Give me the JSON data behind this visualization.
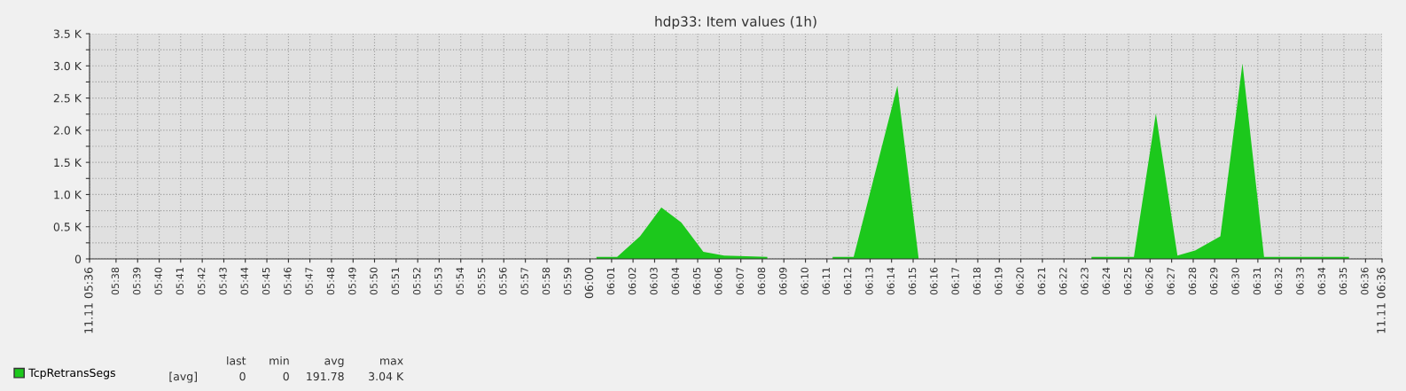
{
  "chart_data": {
    "type": "area",
    "title": "hdp33: Item values (1h)",
    "x": [
      6.005,
      6.021,
      6.0387,
      6.0552,
      6.0705,
      6.0877,
      6.1037,
      6.1372,
      6.15,
      6.1877,
      6.204,
      6.2378,
      6.2543,
      6.3,
      6.388,
      6.4208,
      6.4378,
      6.4545,
      6.4682,
      6.4877,
      6.5048,
      6.5215,
      6.5872
    ],
    "series": [
      {
        "name": "TcpRetransSegs",
        "color": "#1cc81c",
        "values": [
          30,
          30,
          350,
          800,
          570,
          110,
          50,
          30,
          null,
          30,
          30,
          2690,
          0,
          null,
          30,
          30,
          2260,
          50,
          130,
          350,
          3040,
          30,
          30
        ]
      }
    ],
    "xlim": [
      5.6128,
      6.6128
    ],
    "xticks": [
      {
        "value": 5.6128,
        "label": "11.11 05:36"
      },
      {
        "value": 5.6333,
        "label": "05:38"
      },
      {
        "value": 5.65,
        "label": "05:39"
      },
      {
        "value": 5.6667,
        "label": "05:40"
      },
      {
        "value": 5.6833,
        "label": "05:41"
      },
      {
        "value": 5.7,
        "label": "05:42"
      },
      {
        "value": 5.7167,
        "label": "05:43"
      },
      {
        "value": 5.7333,
        "label": "05:44"
      },
      {
        "value": 5.75,
        "label": "05:45"
      },
      {
        "value": 5.7667,
        "label": "05:46"
      },
      {
        "value": 5.7833,
        "label": "05:47"
      },
      {
        "value": 5.8,
        "label": "05:48"
      },
      {
        "value": 5.8167,
        "label": "05:49"
      },
      {
        "value": 5.8333,
        "label": "05:50"
      },
      {
        "value": 5.85,
        "label": "05:51"
      },
      {
        "value": 5.8667,
        "label": "05:52"
      },
      {
        "value": 5.8833,
        "label": "05:53"
      },
      {
        "value": 5.9,
        "label": "05:54"
      },
      {
        "value": 5.9167,
        "label": "05:55"
      },
      {
        "value": 5.9333,
        "label": "05:56"
      },
      {
        "value": 5.95,
        "label": "05:57"
      },
      {
        "value": 5.9667,
        "label": "05:58"
      },
      {
        "value": 5.9833,
        "label": "05:59"
      },
      {
        "value": 6,
        "label": "06:00"
      },
      {
        "value": 6.0167,
        "label": "06:01"
      },
      {
        "value": 6.0333,
        "label": "06:02"
      },
      {
        "value": 6.05,
        "label": "06:03"
      },
      {
        "value": 6.0667,
        "label": "06:04"
      },
      {
        "value": 6.0833,
        "label": "06:05"
      },
      {
        "value": 6.1,
        "label": "06:06"
      },
      {
        "value": 6.1167,
        "label": "06:07"
      },
      {
        "value": 6.1333,
        "label": "06:08"
      },
      {
        "value": 6.15,
        "label": "06:09"
      },
      {
        "value": 6.1667,
        "label": "06:10"
      },
      {
        "value": 6.1833,
        "label": "06:11"
      },
      {
        "value": 6.2,
        "label": "06:12"
      },
      {
        "value": 6.2167,
        "label": "06:13"
      },
      {
        "value": 6.2333,
        "label": "06:14"
      },
      {
        "value": 6.25,
        "label": "06:15"
      },
      {
        "value": 6.2667,
        "label": "06:16"
      },
      {
        "value": 6.2833,
        "label": "06:17"
      },
      {
        "value": 6.3,
        "label": "06:18"
      },
      {
        "value": 6.3167,
        "label": "06:19"
      },
      {
        "value": 6.3333,
        "label": "06:20"
      },
      {
        "value": 6.35,
        "label": "06:21"
      },
      {
        "value": 6.3667,
        "label": "06:22"
      },
      {
        "value": 6.3833,
        "label": "06:23"
      },
      {
        "value": 6.4,
        "label": "06:24"
      },
      {
        "value": 6.4167,
        "label": "06:25"
      },
      {
        "value": 6.4333,
        "label": "06:26"
      },
      {
        "value": 6.45,
        "label": "06:27"
      },
      {
        "value": 6.4667,
        "label": "06:28"
      },
      {
        "value": 6.4833,
        "label": "06:29"
      },
      {
        "value": 6.5,
        "label": "06:30"
      },
      {
        "value": 6.5167,
        "label": "06:31"
      },
      {
        "value": 6.5333,
        "label": "06:32"
      },
      {
        "value": 6.55,
        "label": "06:33"
      },
      {
        "value": 6.5667,
        "label": "06:34"
      },
      {
        "value": 6.5833,
        "label": "06:35"
      },
      {
        "value": 6.6,
        "label": "06:36"
      },
      {
        "value": 6.6128,
        "label": "11.11 06:36"
      }
    ],
    "ylim": [
      0,
      3500
    ],
    "yticks": [
      {
        "value": 0,
        "label": "0"
      },
      {
        "value": 250,
        "label": null
      },
      {
        "value": 500,
        "label": "0.5 K"
      },
      {
        "value": 750,
        "label": null
      },
      {
        "value": 1000,
        "label": "1.0 K"
      },
      {
        "value": 1250,
        "label": null
      },
      {
        "value": 1500,
        "label": "1.5 K"
      },
      {
        "value": 1750,
        "label": null
      },
      {
        "value": 2000,
        "label": "2.0 K"
      },
      {
        "value": 2250,
        "label": null
      },
      {
        "value": 2500,
        "label": "2.5 K"
      },
      {
        "value": 2750,
        "label": null
      },
      {
        "value": 3000,
        "label": "3.0 K"
      },
      {
        "value": 3250,
        "label": null
      },
      {
        "value": 3500,
        "label": "3.5 K"
      }
    ],
    "grid": true,
    "legend": "bottom left",
    "annotations": [
      "[avg]",
      "last",
      "min",
      "avg",
      "max",
      "0",
      "0",
      "191.78",
      "3.04 K"
    ]
  }
}
